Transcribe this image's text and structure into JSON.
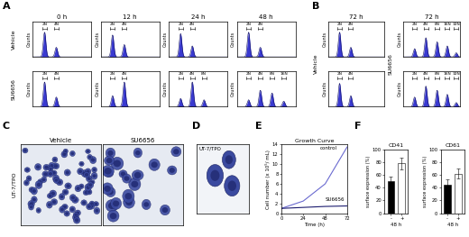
{
  "panel_letters": [
    "A",
    "B",
    "C",
    "D",
    "E",
    "F"
  ],
  "histograms": {
    "ylabel": "Counts",
    "xlim": [
      0,
      100
    ],
    "ylim": [
      0,
      130
    ],
    "color": "#3a3ad0",
    "A": {
      "columns": [
        "0 h",
        "12 h",
        "24 h",
        "48 h"
      ],
      "rows": [
        {
          "label": "Vehicle",
          "panels": [
            [
              {
                "label": "2N",
                "x": 20,
                "height": 90
              },
              {
                "label": "4N",
                "x": 40,
                "height": 35
              }
            ],
            [
              {
                "label": "2N",
                "x": 20,
                "height": 80
              },
              {
                "label": "4N",
                "x": 40,
                "height": 45
              }
            ],
            [
              {
                "label": "2N",
                "x": 20,
                "height": 85
              },
              {
                "label": "4N",
                "x": 40,
                "height": 40
              }
            ],
            [
              {
                "label": "2N",
                "x": 20,
                "height": 90
              },
              {
                "label": "4N",
                "x": 40,
                "height": 35
              }
            ]
          ]
        },
        {
          "label": "SU6656",
          "panels": [
            [
              {
                "label": "2N",
                "x": 20,
                "height": 90
              },
              {
                "label": "4N",
                "x": 40,
                "height": 35
              }
            ],
            [
              {
                "label": "2N",
                "x": 20,
                "height": 40
              },
              {
                "label": "4N",
                "x": 40,
                "height": 90
              }
            ],
            [
              {
                "label": "2N",
                "x": 20,
                "height": 30
              },
              {
                "label": "4N",
                "x": 40,
                "height": 90
              },
              {
                "label": "8N",
                "x": 60,
                "height": 25
              }
            ],
            [
              {
                "label": "2N",
                "x": 20,
                "height": 25
              },
              {
                "label": "4N",
                "x": 40,
                "height": 60
              },
              {
                "label": "8N",
                "x": 60,
                "height": 50
              },
              {
                "label": "16N",
                "x": 80,
                "height": 20
              }
            ]
          ]
        }
      ]
    },
    "B": {
      "columns": [
        {
          "title": "72 h",
          "row_label": "Vehicle",
          "panels": [
            [
              {
                "label": "2N",
                "x": 20,
                "height": 90
              },
              {
                "label": "4N",
                "x": 40,
                "height": 35
              }
            ],
            [
              {
                "label": "2N",
                "x": 20,
                "height": 85
              },
              {
                "label": "4N",
                "x": 40,
                "height": 40
              }
            ]
          ]
        },
        {
          "title": "72 h",
          "row_label": "SU6656",
          "panels": [
            [
              {
                "label": "2N",
                "x": 20,
                "height": 30
              },
              {
                "label": "4N",
                "x": 40,
                "height": 70
              },
              {
                "label": "8N",
                "x": 60,
                "height": 55
              },
              {
                "label": "16N",
                "x": 78,
                "height": 40
              },
              {
                "label": "32N",
                "x": 94,
                "height": 15
              }
            ],
            [
              {
                "label": "2N",
                "x": 20,
                "height": 35
              },
              {
                "label": "4N",
                "x": 40,
                "height": 75
              },
              {
                "label": "8N",
                "x": 60,
                "height": 60
              },
              {
                "label": "16N",
                "x": 78,
                "height": 45
              },
              {
                "label": "32N",
                "x": 94,
                "height": 15
              }
            ]
          ]
        }
      ]
    }
  },
  "micrographs": {
    "C": {
      "side_label": "UT-7/TPO",
      "titles": [
        "Vehicle",
        "SU6656"
      ]
    },
    "D": {
      "label": "UT-7/TPO"
    }
  },
  "chart_data": [
    {
      "type": "line",
      "title": "Growth Curve",
      "x_label": "Time (h)",
      "y_label": "Cell number (x 10⁵/ mL)",
      "x": [
        0,
        24,
        48,
        72
      ],
      "xlim": [
        0,
        72
      ],
      "xticks": [
        0,
        24,
        48,
        72
      ],
      "ylim": [
        0,
        14
      ],
      "yticks": [
        0,
        2,
        4,
        6,
        8,
        10,
        12,
        14
      ],
      "series": [
        {
          "name": "control",
          "color": "#6a6ad0",
          "values": [
            1,
            2.5,
            6,
            13.5
          ]
        },
        {
          "name": "SU6656",
          "color": "#1a1a6e",
          "values": [
            1,
            1.2,
            1.4,
            1.5
          ]
        }
      ]
    },
    {
      "type": "bar",
      "title": "CD41",
      "x_label": "48 h",
      "y_label": "surface expression (%)",
      "categories": [
        "-",
        "+"
      ],
      "values": [
        50,
        78
      ],
      "errors": [
        8,
        9
      ],
      "colors": [
        "#000000",
        "#ffffff"
      ],
      "ylim": [
        0,
        100
      ],
      "yticks": [
        0,
        20,
        40,
        60,
        80,
        100
      ]
    },
    {
      "type": "bar",
      "title": "CD61",
      "x_label": "48 h",
      "y_label": "surface expression (%)",
      "categories": [
        "-",
        "+"
      ],
      "values": [
        45,
        62
      ],
      "errors": [
        8,
        8
      ],
      "colors": [
        "#000000",
        "#ffffff"
      ],
      "ylim": [
        0,
        100
      ],
      "yticks": [
        0,
        20,
        40,
        60,
        80,
        100
      ]
    }
  ]
}
